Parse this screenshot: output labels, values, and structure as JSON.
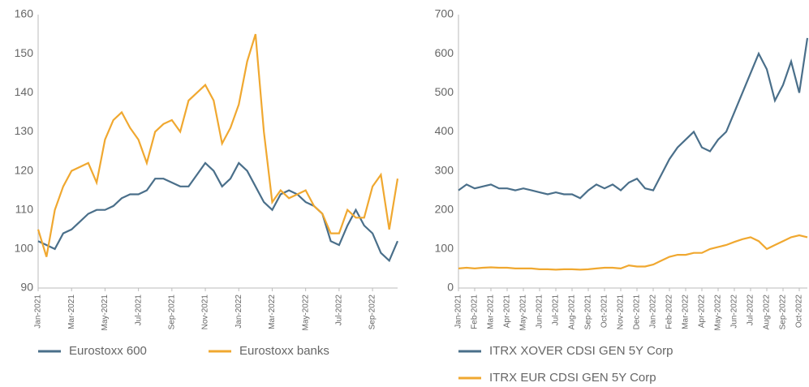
{
  "chart_data": [
    {
      "type": "line",
      "categories": [
        "Jan-2021",
        null,
        null,
        null,
        "Mar-2021",
        null,
        null,
        null,
        "May-2021",
        null,
        null,
        null,
        "Jul-2021",
        null,
        null,
        null,
        "Sep-2021",
        null,
        null,
        null,
        "Nov-2021",
        null,
        null,
        null,
        "Jan-2022",
        null,
        null,
        null,
        "Mar-2022",
        null,
        null,
        null,
        "May-2022",
        null,
        null,
        null,
        "Jul-2022",
        null,
        null,
        null,
        "Sep-2022",
        null,
        null,
        null
      ],
      "series": [
        {
          "name": "Eurostoxx 600",
          "color": "#4a6f8a",
          "values": [
            102,
            101,
            100,
            104,
            105,
            107,
            109,
            110,
            110,
            111,
            113,
            114,
            114,
            115,
            118,
            118,
            117,
            116,
            116,
            119,
            122,
            120,
            116,
            118,
            122,
            120,
            116,
            112,
            110,
            114,
            115,
            114,
            112,
            111,
            109,
            102,
            101,
            106,
            110,
            106,
            104,
            99,
            97,
            102
          ]
        },
        {
          "name": "Eurostoxx banks",
          "color": "#f0a830",
          "values": [
            105,
            98,
            110,
            116,
            120,
            121,
            122,
            117,
            128,
            133,
            135,
            131,
            128,
            122,
            130,
            132,
            133,
            130,
            138,
            140,
            142,
            138,
            127,
            131,
            137,
            148,
            155,
            130,
            112,
            115,
            113,
            114,
            115,
            111,
            109,
            104,
            104,
            110,
            108,
            108,
            116,
            119,
            105,
            118
          ]
        }
      ],
      "ylim": [
        90,
        160
      ],
      "yticks": [
        90,
        100,
        110,
        120,
        130,
        140,
        150,
        160
      ],
      "legend": "bottom"
    },
    {
      "type": "line",
      "categories": [
        "Jan-2021",
        null,
        "Feb-2021",
        null,
        "Mar-2021",
        null,
        "Apr-2021",
        null,
        "May-2021",
        null,
        "Jun-2021",
        null,
        "Jul-2021",
        null,
        "Aug-2021",
        null,
        "Sep-2021",
        null,
        "Oct-2021",
        null,
        "Nov-2021",
        null,
        "Dec-2021",
        null,
        "Jan-2022",
        null,
        "Feb-2022",
        null,
        "Mar-2022",
        null,
        "Apr-2022",
        null,
        "May-2022",
        null,
        "Jun-2022",
        null,
        "Jul-2022",
        null,
        "Aug-2022",
        null,
        "Sep-2022",
        null,
        "Oct-2022",
        null
      ],
      "series": [
        {
          "name": "ITRX XOVER CDSI GEN 5Y Corp",
          "color": "#4a6f8a",
          "values": [
            250,
            265,
            255,
            260,
            265,
            255,
            255,
            250,
            255,
            250,
            245,
            240,
            245,
            240,
            240,
            230,
            250,
            265,
            255,
            265,
            250,
            270,
            280,
            255,
            250,
            290,
            330,
            360,
            380,
            400,
            360,
            350,
            380,
            400,
            450,
            500,
            550,
            600,
            560,
            480,
            520,
            580,
            500,
            640
          ]
        },
        {
          "name": "ITRX EUR CDSI GEN 5Y Corp",
          "color": "#f0a830",
          "values": [
            50,
            52,
            50,
            52,
            53,
            52,
            52,
            50,
            50,
            50,
            48,
            48,
            47,
            48,
            48,
            47,
            48,
            50,
            52,
            52,
            50,
            58,
            55,
            55,
            60,
            70,
            80,
            85,
            85,
            90,
            90,
            100,
            105,
            110,
            118,
            125,
            130,
            120,
            100,
            110,
            120,
            130,
            135,
            130
          ]
        }
      ],
      "ylim": [
        0,
        700
      ],
      "yticks": [
        0,
        100,
        200,
        300,
        400,
        500,
        600,
        700
      ],
      "legend": "bottom"
    }
  ]
}
